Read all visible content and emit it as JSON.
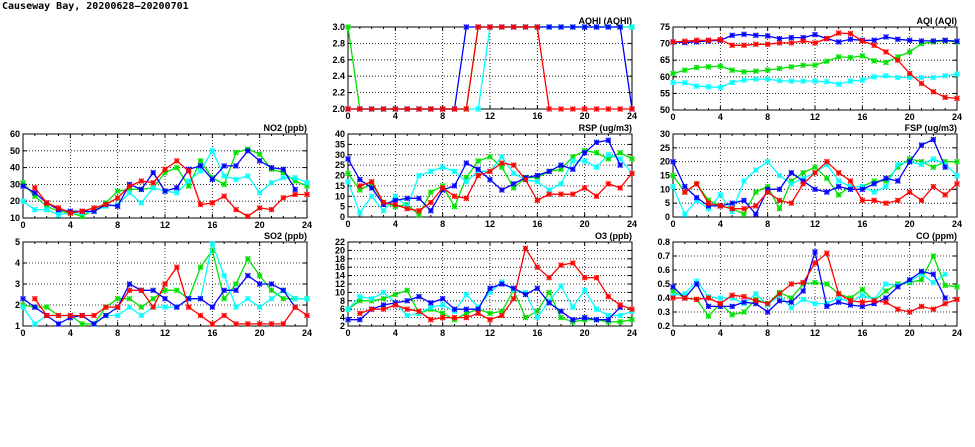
{
  "page_title": "Causeway Bay, 20200628–20200701",
  "series_colors": {
    "green": "#00e000",
    "cyan": "#00ffff",
    "blue": "#0000ff",
    "red": "#ff0000"
  },
  "chart_data": [
    {
      "id": "no2",
      "type": "line",
      "title": "NO2 (ppb)",
      "xlim": [
        0,
        24
      ],
      "xticks": [
        0,
        4,
        8,
        12,
        16,
        20,
        24
      ],
      "ylim": [
        10,
        60
      ],
      "yticks": [
        10,
        20,
        30,
        40,
        50,
        60
      ],
      "grid": true,
      "series": [
        {
          "name": "green",
          "values": [
            31,
            23,
            17,
            14,
            13,
            11,
            15,
            19,
            26,
            27,
            27,
            28,
            37,
            40,
            29,
            44,
            34,
            30,
            49,
            51,
            48,
            39,
            37,
            32,
            29
          ]
        },
        {
          "name": "cyan",
          "values": [
            20,
            15,
            15,
            12,
            13,
            13,
            14,
            17,
            18,
            25,
            19,
            28,
            26,
            25,
            32,
            38,
            50,
            35,
            33,
            35,
            25,
            31,
            34,
            34,
            31
          ]
        },
        {
          "name": "blue",
          "values": [
            29,
            25,
            19,
            15,
            14,
            14,
            14,
            18,
            17,
            30,
            27,
            37,
            26,
            28,
            39,
            41,
            33,
            41,
            41,
            50,
            44,
            40,
            39,
            27,
            null
          ]
        },
        {
          "name": "red",
          "values": [
            null,
            28,
            19,
            16,
            13,
            14,
            16,
            18,
            22,
            29,
            32,
            31,
            39,
            44,
            38,
            18,
            19,
            23,
            15,
            11,
            16,
            15,
            22,
            24,
            24
          ]
        }
      ]
    },
    {
      "id": "aqhi",
      "type": "line",
      "title": "AQHI (AQHI)",
      "xlim": [
        0,
        24
      ],
      "xticks": [
        0,
        4,
        8,
        12,
        16,
        20,
        24
      ],
      "ylim": [
        2.0,
        3.0
      ],
      "yticks": [
        2.0,
        2.2,
        2.4,
        2.6,
        2.8,
        3.0
      ],
      "grid": true,
      "series": [
        {
          "name": "green",
          "values": [
            3,
            2,
            2,
            2,
            2,
            2,
            2,
            2,
            2,
            2,
            2,
            3,
            3,
            3,
            3,
            3,
            3,
            3,
            3,
            3,
            3,
            3,
            3,
            3,
            3
          ]
        },
        {
          "name": "cyan",
          "values": [
            2,
            2,
            2,
            2,
            2,
            2,
            2,
            2,
            2,
            2,
            2,
            2,
            3,
            3,
            3,
            3,
            3,
            3,
            3,
            3,
            3,
            3,
            3,
            3,
            3
          ]
        },
        {
          "name": "blue",
          "values": [
            2,
            2,
            2,
            2,
            2,
            2,
            2,
            2,
            2,
            2,
            3,
            3,
            3,
            3,
            3,
            3,
            3,
            3,
            3,
            3,
            3,
            3,
            3,
            3,
            2
          ]
        },
        {
          "name": "red",
          "values": [
            2,
            2,
            2,
            2,
            2,
            2,
            2,
            2,
            2,
            2,
            2,
            3,
            3,
            3,
            3,
            3,
            3,
            2,
            2,
            2,
            2,
            2,
            2,
            2,
            2
          ]
        }
      ]
    },
    {
      "id": "aqi",
      "type": "line",
      "title": "AQI (AQI)",
      "xlim": [
        0,
        24
      ],
      "xticks": [
        0,
        4,
        8,
        12,
        16,
        20,
        24
      ],
      "ylim": [
        50,
        75
      ],
      "yticks": [
        50,
        55,
        60,
        65,
        70,
        75
      ],
      "grid": true,
      "series": [
        {
          "name": "green",
          "values": [
            61,
            62,
            62.8,
            63,
            63.2,
            62,
            61.5,
            61.7,
            62,
            62.5,
            63,
            63.5,
            63.5,
            64.7,
            66,
            65.8,
            66.3,
            64.8,
            64.3,
            66,
            67.5,
            70,
            70.5,
            70.8,
            70.5
          ]
        },
        {
          "name": "cyan",
          "values": [
            58.3,
            58.2,
            57.2,
            57,
            56.8,
            58.3,
            59,
            59.3,
            59.3,
            58.8,
            58.7,
            58.7,
            58.7,
            58.5,
            57.8,
            58.7,
            59,
            60,
            60.3,
            59.8,
            59.8,
            59.8,
            59.8,
            60.3,
            60.8
          ]
        },
        {
          "name": "blue",
          "values": [
            70.5,
            70.3,
            70.5,
            70.8,
            71,
            72.5,
            72.8,
            72.5,
            72.3,
            71.5,
            71.8,
            71.8,
            72.7,
            71.5,
            70.5,
            71.3,
            71,
            71,
            72,
            71.3,
            71,
            70.8,
            70.8,
            71,
            70.7
          ]
        },
        {
          "name": "red",
          "values": [
            70.5,
            70.7,
            71,
            71,
            71.2,
            69.5,
            69.5,
            69.8,
            69.8,
            70.2,
            70.2,
            70.8,
            70.2,
            71.5,
            73.2,
            73,
            70.8,
            69.5,
            67.5,
            65,
            61,
            58,
            55.5,
            53.8,
            53.5
          ]
        }
      ]
    },
    {
      "id": "rsp",
      "type": "line",
      "title": "RSP (ug/m3)",
      "xlim": [
        0,
        24
      ],
      "xticks": [
        0,
        4,
        8,
        12,
        16,
        20,
        24
      ],
      "ylim": [
        0,
        40
      ],
      "yticks": [
        0,
        5,
        10,
        15,
        20,
        25,
        30,
        35,
        40
      ],
      "grid": true,
      "series": [
        {
          "name": "green",
          "values": [
            21,
            13,
            16,
            7,
            5,
            6,
            1,
            12,
            15,
            5,
            19,
            27,
            29,
            24,
            14,
            19,
            19,
            22,
            23,
            29,
            32,
            31,
            28,
            31,
            28
          ]
        },
        {
          "name": "cyan",
          "values": [
            17,
            2,
            10,
            3,
            10,
            5,
            20,
            22,
            24,
            22,
            17,
            22,
            22,
            29,
            21,
            18,
            17,
            13,
            16,
            27,
            27,
            24,
            30,
            28,
            21
          ]
        },
        {
          "name": "blue",
          "values": [
            28,
            18,
            14,
            6,
            8,
            9,
            9,
            3,
            13,
            15,
            26,
            23,
            18,
            13,
            16,
            19,
            20,
            22,
            25,
            23,
            31,
            36,
            37,
            25,
            null
          ]
        },
        {
          "name": "red",
          "values": [
            null,
            15,
            17,
            7,
            6,
            4,
            3,
            7,
            14,
            10,
            9,
            20,
            22,
            26,
            25,
            18,
            8,
            11,
            11,
            11,
            14,
            10,
            16,
            14,
            21
          ]
        }
      ]
    },
    {
      "id": "fsp",
      "type": "line",
      "title": "FSP (ug/m3)",
      "xlim": [
        0,
        24
      ],
      "xticks": [
        0,
        4,
        8,
        12,
        16,
        20,
        24
      ],
      "ylim": [
        0,
        30
      ],
      "yticks": [
        0,
        5,
        10,
        15,
        20,
        25,
        30
      ],
      "grid": true,
      "series": [
        {
          "name": "green",
          "values": [
            15,
            9,
            12,
            6,
            4,
            3,
            1,
            9,
            11,
            3,
            13,
            16,
            18,
            14,
            8,
            11,
            11,
            13,
            13,
            18,
            21,
            20,
            18,
            20,
            20
          ]
        },
        {
          "name": "cyan",
          "values": [
            11,
            1,
            6,
            3,
            8,
            2,
            13,
            17,
            20,
            15,
            12,
            14,
            16,
            19,
            13,
            11,
            11,
            9,
            11,
            19,
            20,
            19,
            21,
            19,
            15
          ]
        },
        {
          "name": "blue",
          "values": [
            20,
            11,
            7,
            4,
            4,
            5,
            6,
            1,
            10,
            10,
            16,
            13,
            10,
            9,
            11,
            10,
            10,
            12,
            14,
            13,
            20,
            26,
            28,
            18,
            null
          ]
        },
        {
          "name": "red",
          "values": [
            null,
            9,
            12,
            5,
            4,
            3,
            3,
            4,
            9,
            6,
            5,
            12,
            16,
            20,
            16,
            13,
            6,
            6,
            5,
            6,
            9,
            6,
            11,
            8,
            12
          ]
        }
      ]
    },
    {
      "id": "so2",
      "type": "line",
      "title": "SO2 (ppb)",
      "xlim": [
        0,
        24
      ],
      "xticks": [
        0,
        4,
        8,
        12,
        16,
        20,
        24
      ],
      "ylim": [
        1,
        5
      ],
      "yticks": [
        1,
        2,
        3,
        4,
        5
      ],
      "grid": true,
      "series": [
        {
          "name": "green",
          "values": [
            2,
            1.9,
            1.9,
            1.5,
            1.5,
            1.1,
            1.1,
            1.9,
            2.3,
            2.3,
            1.9,
            2.3,
            2.7,
            2.7,
            2.3,
            3.8,
            4.6,
            2.3,
            3,
            4.2,
            3.4,
            2.7,
            2.3,
            2.3,
            2.3
          ]
        },
        {
          "name": "cyan",
          "values": [
            1.9,
            1.1,
            1.5,
            1.5,
            1.5,
            1.5,
            1.1,
            1.5,
            1.5,
            1.9,
            1.5,
            1.9,
            1.9,
            1.9,
            2.3,
            2.3,
            4.9,
            3.4,
            1.9,
            2.3,
            1.9,
            2.3,
            2.7,
            2.3,
            2.3
          ]
        },
        {
          "name": "blue",
          "values": [
            2.3,
            1.9,
            1.5,
            1.1,
            1.4,
            1.5,
            1.1,
            1.5,
            1.9,
            3,
            2.7,
            2.7,
            2.3,
            1.9,
            2.3,
            2.3,
            1.9,
            2.7,
            2.7,
            3.4,
            3,
            3,
            2.7,
            1.9,
            null
          ]
        },
        {
          "name": "red",
          "values": [
            null,
            2.3,
            1.5,
            1.5,
            1.5,
            1.5,
            1.5,
            1.9,
            1.9,
            2.7,
            2.7,
            1.9,
            3,
            3.8,
            1.9,
            1.5,
            1.1,
            1.5,
            1.1,
            1.1,
            1.1,
            1.1,
            1.1,
            1.9,
            1.5
          ]
        }
      ]
    },
    {
      "id": "o3",
      "type": "line",
      "title": "O3 (ppb)",
      "xlim": [
        0,
        24
      ],
      "xticks": [
        0,
        4,
        8,
        12,
        16,
        20,
        24
      ],
      "ylim": [
        2,
        22
      ],
      "yticks": [
        2,
        4,
        6,
        8,
        10,
        12,
        14,
        16,
        18,
        20,
        22
      ],
      "grid": true,
      "series": [
        {
          "name": "green",
          "values": [
            6,
            8,
            8,
            8.5,
            9.5,
            10.5,
            5,
            6,
            5,
            3.5,
            5,
            6,
            5,
            5.5,
            10.5,
            4,
            5.5,
            10,
            4,
            3,
            3.5,
            3.5,
            3,
            3,
            3.5
          ]
        },
        {
          "name": "cyan",
          "values": [
            6,
            9,
            8.5,
            10,
            7.5,
            4.5,
            5,
            6.5,
            7,
            5.5,
            9.5,
            6.5,
            10,
            12.5,
            10.5,
            10,
            4,
            8,
            11.5,
            6.5,
            10.5,
            6,
            4.5,
            4.5,
            5.5
          ]
        },
        {
          "name": "blue",
          "values": [
            3.5,
            3.5,
            6,
            7,
            7.5,
            8,
            9,
            7.5,
            8.5,
            6,
            6,
            6,
            11,
            12,
            11,
            9.5,
            11,
            7.5,
            5.5,
            3.5,
            4,
            3.5,
            3.5,
            6.5,
            null
          ]
        },
        {
          "name": "red",
          "values": [
            null,
            5,
            6,
            6,
            7,
            6,
            5.5,
            3.5,
            4,
            4,
            4,
            5,
            3.5,
            4.5,
            8.5,
            20.5,
            16,
            13.5,
            16.5,
            17,
            13.5,
            13.5,
            9,
            7,
            6
          ]
        }
      ]
    },
    {
      "id": "co",
      "type": "line",
      "title": "CO (ppm)",
      "xlim": [
        0,
        24
      ],
      "xticks": [
        0,
        4,
        8,
        12,
        16,
        20,
        24
      ],
      "ylim": [
        0.2,
        0.8
      ],
      "yticks": [
        0.2,
        0.3,
        0.4,
        0.5,
        0.6,
        0.7,
        0.8
      ],
      "grid": true,
      "series": [
        {
          "name": "green",
          "values": [
            0.45,
            0.4,
            0.39,
            0.27,
            0.36,
            0.28,
            0.3,
            0.39,
            0.36,
            0.44,
            0.4,
            0.5,
            0.51,
            0.5,
            0.43,
            0.4,
            0.46,
            0.38,
            0.45,
            0.5,
            0.51,
            0.53,
            0.7,
            0.49,
            0.48
          ]
        },
        {
          "name": "cyan",
          "values": [
            0.42,
            0.43,
            0.52,
            0.41,
            0.4,
            0.4,
            0.36,
            0.43,
            0.35,
            0.42,
            0.33,
            0.39,
            0.36,
            0.36,
            0.4,
            0.37,
            0.42,
            0.39,
            0.5,
            0.49,
            0.52,
            0.57,
            0.51,
            0.57,
            null
          ]
        },
        {
          "name": "blue",
          "values": [
            0.48,
            0.4,
            0.5,
            0.34,
            0.34,
            0.34,
            0.37,
            0.36,
            0.3,
            0.38,
            0.37,
            0.45,
            0.73,
            0.34,
            0.37,
            0.35,
            0.34,
            0.36,
            0.4,
            0.48,
            0.53,
            0.59,
            0.57,
            0.4,
            null
          ]
        },
        {
          "name": "red",
          "values": [
            0.4,
            0.4,
            0.39,
            0.4,
            0.36,
            0.42,
            0.41,
            0.38,
            0.36,
            0.43,
            0.5,
            0.51,
            0.65,
            0.72,
            0.43,
            0.38,
            0.37,
            0.38,
            0.37,
            0.32,
            0.3,
            0.34,
            0.32,
            0.36,
            0.39
          ]
        }
      ]
    }
  ]
}
